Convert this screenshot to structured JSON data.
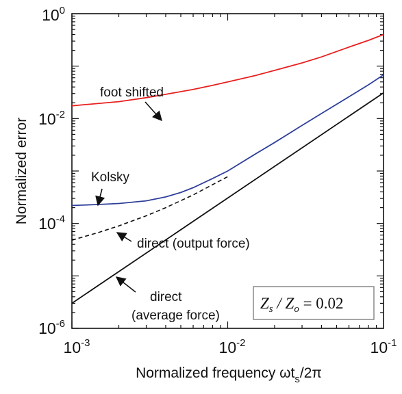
{
  "chart_data": {
    "type": "line",
    "xscale": "log",
    "yscale": "log",
    "xlim": [
      0.001,
      0.1
    ],
    "ylim": [
      1e-06,
      1
    ],
    "x_ticks": [
      {
        "base": "10",
        "exp": "-3"
      },
      {
        "base": "10",
        "exp": "-2"
      },
      {
        "base": "10",
        "exp": "-1"
      }
    ],
    "y_ticks": [
      {
        "base": "10",
        "exp": "-6"
      },
      {
        "base": "10",
        "exp": "-4"
      },
      {
        "base": "10",
        "exp": "-2"
      },
      {
        "base": "10",
        "exp": "0"
      }
    ],
    "xlabel": {
      "main": "Normalized frequency ωt",
      "sub": "s",
      "tail": "/2π"
    },
    "ylabel": "Normalized error",
    "series": [
      {
        "name": "foot shifted",
        "color": "#e8201e",
        "style": "solid",
        "points": [
          [
            0.001,
            0.0175
          ],
          [
            0.0015,
            0.0195
          ],
          [
            0.002,
            0.021
          ],
          [
            0.003,
            0.025
          ],
          [
            0.004,
            0.029
          ],
          [
            0.006,
            0.036
          ],
          [
            0.008,
            0.043
          ],
          [
            0.01,
            0.05
          ],
          [
            0.015,
            0.066
          ],
          [
            0.02,
            0.083
          ],
          [
            0.03,
            0.115
          ],
          [
            0.04,
            0.15
          ],
          [
            0.06,
            0.23
          ],
          [
            0.08,
            0.31
          ],
          [
            0.1,
            0.4
          ]
        ]
      },
      {
        "name": "Kolsky",
        "color": "#2e3f9a",
        "style": "solid",
        "points": [
          [
            0.001,
            0.00022
          ],
          [
            0.0015,
            0.00023
          ],
          [
            0.002,
            0.00024
          ],
          [
            0.003,
            0.00027
          ],
          [
            0.004,
            0.00032
          ],
          [
            0.005,
            0.00039
          ],
          [
            0.006,
            0.00048
          ],
          [
            0.008,
            0.00072
          ],
          [
            0.01,
            0.001
          ],
          [
            0.015,
            0.0021
          ],
          [
            0.02,
            0.0035
          ],
          [
            0.03,
            0.0074
          ],
          [
            0.04,
            0.0125
          ],
          [
            0.06,
            0.026
          ],
          [
            0.08,
            0.044
          ],
          [
            0.1,
            0.068
          ]
        ]
      },
      {
        "name": "direct (output force)",
        "color": "#111111",
        "style": "dashed",
        "points": [
          [
            0.001,
            4.8e-05
          ],
          [
            0.0015,
            6.8e-05
          ],
          [
            0.002,
            9e-05
          ],
          [
            0.003,
            0.00014
          ],
          [
            0.004,
            0.0002
          ],
          [
            0.006,
            0.00035
          ],
          [
            0.008,
            0.00055
          ],
          [
            0.01,
            0.00078
          ]
        ]
      },
      {
        "name": "direct (average force)",
        "color": "#111111",
        "style": "solid",
        "points": [
          [
            0.001,
            3e-06
          ],
          [
            0.01,
            0.000305
          ],
          [
            0.1,
            0.031
          ]
        ]
      }
    ],
    "annotations": [
      {
        "id": "foot",
        "lines": [
          "foot shifted"
        ]
      },
      {
        "id": "kolsky",
        "lines": [
          "Kolsky"
        ]
      },
      {
        "id": "output",
        "lines": [
          "direct (output force)"
        ]
      },
      {
        "id": "average",
        "lines": [
          "direct",
          "(average force)"
        ]
      }
    ],
    "equation": {
      "lhs1": "Z",
      "sub1": "s",
      "slash": " / ",
      "lhs2": "Z",
      "sub2": "o",
      "rhs": " = 0.02"
    },
    "grid": false,
    "legend": "none"
  }
}
